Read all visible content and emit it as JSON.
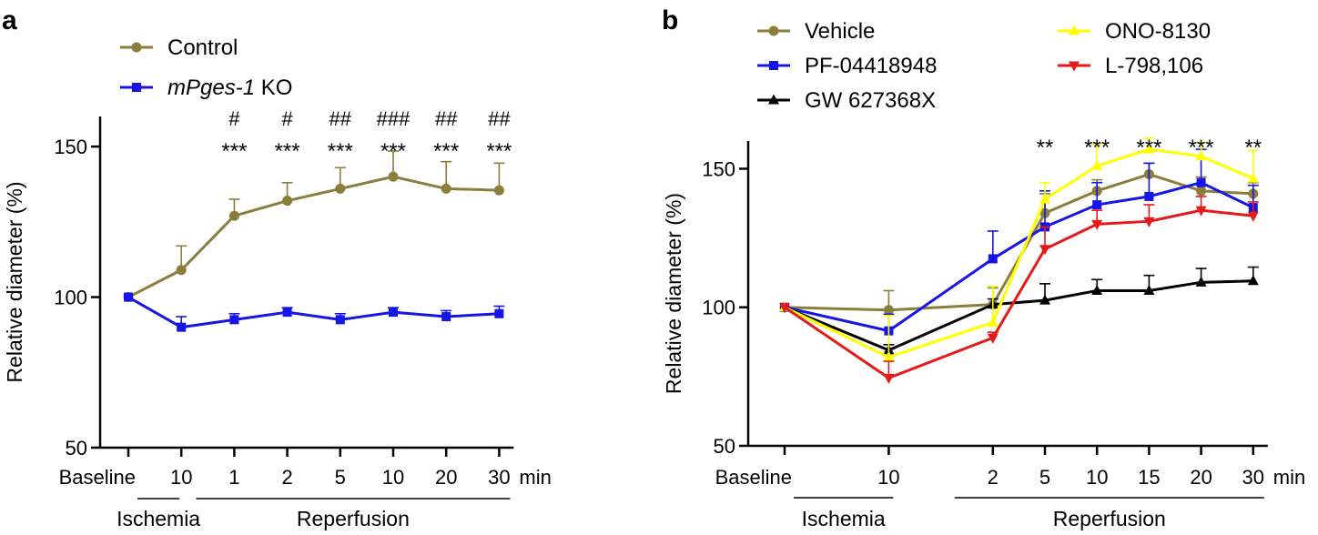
{
  "chart_data": [
    {
      "panel": "a",
      "type": "line",
      "ylabel": "Relative diameter (%)",
      "ylim": [
        50,
        160
      ],
      "yticks": [
        "50",
        "100",
        "150"
      ],
      "categories": [
        "Baseline",
        "10",
        "1",
        "2",
        "5",
        "10",
        "20",
        "30"
      ],
      "x_unit": "min",
      "groups": [
        {
          "label": "Ischemia",
          "from": 0,
          "to": 1
        },
        {
          "label": "Reperfusion",
          "from": 2,
          "to": 7
        }
      ],
      "legend_position": "top-left",
      "series": [
        {
          "name": "Control",
          "italic_part": "",
          "rest": "Control",
          "color": "#8b7d3a",
          "marker": "circle",
          "values": [
            100,
            109,
            127,
            132,
            136,
            140,
            136,
            135.5
          ],
          "errors": [
            0,
            8,
            5.5,
            6,
            7,
            8.5,
            9,
            9
          ]
        },
        {
          "name": "mPges-1 KO",
          "italic_part": "mPges-1",
          "rest": " KO",
          "color": "#1515e6",
          "marker": "square",
          "values": [
            100,
            90,
            92.5,
            95,
            92.5,
            95,
            93.5,
            94.5
          ],
          "errors": [
            0,
            3.5,
            2,
            1.5,
            2,
            1.5,
            2,
            2.5
          ]
        }
      ],
      "annotations": {
        "hash": [
          "",
          "",
          "#",
          "#",
          "##",
          "###",
          "##",
          "##"
        ],
        "stars": [
          "",
          "",
          "***",
          "***",
          "***",
          "***",
          "***",
          "***"
        ]
      }
    },
    {
      "panel": "b",
      "type": "line",
      "ylabel": "Relative diameter (%)",
      "ylim": [
        50,
        160
      ],
      "yticks": [
        "50",
        "100",
        "150"
      ],
      "categories": [
        "Baseline",
        "10",
        "2",
        "5",
        "10",
        "15",
        "20",
        "30"
      ],
      "x_positions": [
        0,
        2,
        4,
        5,
        6,
        7,
        8,
        9
      ],
      "x_unit": "min",
      "groups": [
        {
          "label": "Ischemia",
          "from": 0,
          "to": 1
        },
        {
          "label": "Reperfusion",
          "from": 2,
          "to": 7
        }
      ],
      "legend_position": "top",
      "series": [
        {
          "name": "Vehicle",
          "color": "#8b7d3a",
          "marker": "circle",
          "values": [
            100,
            99,
            101,
            134,
            142,
            148,
            142,
            141
          ],
          "errors": [
            0,
            7,
            6,
            7,
            4,
            4,
            5,
            4
          ]
        },
        {
          "name": "PF-04418948",
          "color": "#1515e6",
          "marker": "square",
          "values": [
            100,
            91.5,
            117.5,
            129,
            137,
            140,
            145,
            136
          ],
          "errors": [
            0,
            6,
            10,
            13,
            8,
            12,
            12,
            8
          ]
        },
        {
          "name": "GW 627368X",
          "color": "#000000",
          "marker": "triangle-up",
          "values": [
            100,
            84.5,
            101,
            102.5,
            106,
            106,
            109,
            109.5
          ],
          "errors": [
            0,
            2,
            2,
            6,
            4,
            5.5,
            5,
            5
          ]
        },
        {
          "name": "ONO-8130",
          "color": "#ffff00",
          "marker": "triangle-up",
          "values": [
            100,
            82,
            94.5,
            139,
            151,
            157,
            154.5,
            146.5
          ],
          "errors": [
            0,
            15,
            13,
            6,
            8,
            4,
            5,
            10
          ]
        },
        {
          "name": "L-798,106",
          "color": "#e61a1a",
          "marker": "triangle-down",
          "values": [
            100,
            74.5,
            89,
            121,
            130,
            131,
            135,
            133
          ],
          "errors": [
            0,
            6,
            2,
            8,
            5,
            6,
            5,
            5
          ]
        }
      ],
      "annotations": {
        "stars": [
          "",
          "",
          "",
          "**",
          "***",
          "***",
          "***",
          "**"
        ]
      }
    }
  ]
}
